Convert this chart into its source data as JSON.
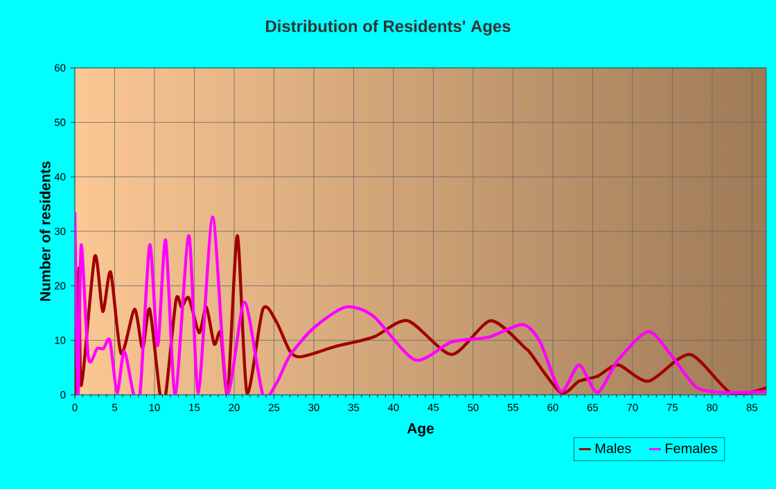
{
  "chart_data": {
    "type": "line",
    "title": "Distribution of Residents' Ages",
    "xlabel": "Age",
    "ylabel": "Number of residents",
    "xlim": [
      0,
      86.8
    ],
    "ylim": [
      0,
      60
    ],
    "xticks": [
      0,
      5,
      10,
      15,
      20,
      25,
      30,
      35,
      40,
      45,
      50,
      55,
      60,
      65,
      70,
      75,
      80,
      85
    ],
    "yticks": [
      0,
      10,
      20,
      30,
      40,
      50,
      60
    ],
    "grid": true,
    "legend": "bottom right",
    "series": [
      {
        "name": "Males",
        "color": "#a00000",
        "x": [
          0,
          0.52,
          0.81,
          2.5,
          3.5,
          4.5,
          5.8,
          7.5,
          8.5,
          9.4,
          10.7,
          11.4,
          12.7,
          13.4,
          14.3,
          15.6,
          16.5,
          17.5,
          18.3,
          19.2,
          20.4,
          21.6,
          23.6,
          25.3,
          27,
          28.5,
          32.8,
          37.5,
          41.8,
          47.3,
          52.2,
          56.6,
          57.2,
          61,
          63.3,
          65.6,
          68.2,
          72,
          77.2,
          82.4,
          86.8
        ],
        "values": [
          0,
          23.3,
          1.7,
          25.4,
          15.3,
          22.5,
          7.6,
          15.7,
          8.5,
          15.7,
          0,
          0,
          17.4,
          16.1,
          17.8,
          11.4,
          16.1,
          9.3,
          11.4,
          0.4,
          29.2,
          0.4,
          15.7,
          13.4,
          8,
          7,
          8.9,
          10.6,
          13.6,
          7.4,
          13.6,
          8.5,
          7.6,
          0.4,
          2.5,
          3.4,
          5.5,
          2.5,
          7.4,
          0.3,
          1.3
        ]
      },
      {
        "name": "Females",
        "color": "#ff00ff",
        "x": [
          0,
          0.4,
          0.8,
          1.7,
          2.8,
          3.6,
          4.4,
          5.3,
          6.2,
          7.4,
          8.2,
          9.4,
          10.4,
          11.4,
          12.6,
          14.3,
          15.5,
          17.3,
          19.1,
          21.3,
          23.6,
          25.3,
          27,
          30,
          34,
          37.5,
          42.7,
          47.3,
          52,
          56.2,
          58.4,
          61,
          63.3,
          65.6,
          68.2,
          72,
          74.9,
          78.1,
          82.2,
          86.8
        ],
        "values": [
          33.5,
          0,
          27.5,
          6.8,
          8.5,
          8.5,
          10,
          0.4,
          8,
          0,
          0.4,
          27.5,
          9,
          28.4,
          0,
          29.2,
          0.4,
          32.6,
          0.4,
          17,
          0,
          2.1,
          7.2,
          12.3,
          16.1,
          14.4,
          6.4,
          9.7,
          10.6,
          12.9,
          9.7,
          0.6,
          5.5,
          0.4,
          6.4,
          11.6,
          7.2,
          1.3,
          0.4,
          0.6
        ]
      }
    ]
  }
}
